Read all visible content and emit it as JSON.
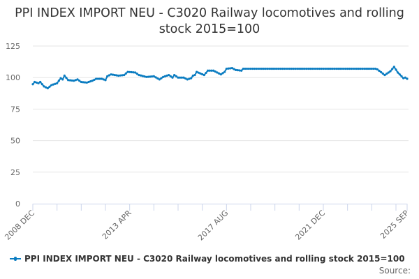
{
  "chart_data": {
    "type": "line",
    "title": "PPI INDEX IMPORT NEU - C3020 Railway locomotives and rolling stock 2015=100",
    "xlabel": "",
    "ylabel": "",
    "ylim": [
      0,
      125
    ],
    "yticks": [
      0,
      25,
      50,
      75,
      100,
      125
    ],
    "xtick_labels": [
      "2008 DEC",
      "2013 APR",
      "2017 AUG",
      "2021 DEC",
      "2025 SEP"
    ],
    "xlim": [
      "2008-12",
      "2025-09"
    ],
    "grid": "horizontal",
    "legend_placement": "bottom",
    "color": "#0a7cc1",
    "series": [
      {
        "name": "PPI INDEX IMPORT NEU - C3020 Railway locomotives and rolling stock 2015=100",
        "points": [
          [
            "2008-12",
            94.7
          ],
          [
            "2009-01",
            96.5
          ],
          [
            "2009-03",
            95.5
          ],
          [
            "2009-04",
            96.5
          ],
          [
            "2009-06",
            93
          ],
          [
            "2009-08",
            91.5
          ],
          [
            "2009-10",
            94
          ],
          [
            "2010-01",
            95.5
          ],
          [
            "2010-03",
            99.5
          ],
          [
            "2010-04",
            98.5
          ],
          [
            "2010-05",
            101.5
          ],
          [
            "2010-07",
            98
          ],
          [
            "2010-10",
            97.5
          ],
          [
            "2010-12",
            98.5
          ],
          [
            "2011-02",
            96.5
          ],
          [
            "2011-05",
            96
          ],
          [
            "2011-08",
            97.5
          ],
          [
            "2011-10",
            99
          ],
          [
            "2012-01",
            99
          ],
          [
            "2012-03",
            98
          ],
          [
            "2012-04",
            101
          ],
          [
            "2012-06",
            102.5
          ],
          [
            "2012-10",
            101.5
          ],
          [
            "2013-01",
            102
          ],
          [
            "2013-03",
            104.5
          ],
          [
            "2013-07",
            104
          ],
          [
            "2013-09",
            102
          ],
          [
            "2014-01",
            100.5
          ],
          [
            "2014-05",
            101
          ],
          [
            "2014-08",
            98.5
          ],
          [
            "2014-10",
            100.5
          ],
          [
            "2015-01",
            102
          ],
          [
            "2015-03",
            100
          ],
          [
            "2015-04",
            102
          ],
          [
            "2015-06",
            100
          ],
          [
            "2015-09",
            100
          ],
          [
            "2015-11",
            98.5
          ],
          [
            "2016-01",
            99.5
          ],
          [
            "2016-02",
            101.5
          ],
          [
            "2016-03",
            102
          ],
          [
            "2016-04",
            104.5
          ],
          [
            "2016-08",
            102
          ],
          [
            "2016-10",
            105.5
          ],
          [
            "2017-01",
            105.5
          ],
          [
            "2017-05",
            102.5
          ],
          [
            "2017-07",
            104.5
          ],
          [
            "2017-08",
            107
          ],
          [
            "2017-11",
            107.5
          ],
          [
            "2018-01",
            106
          ],
          [
            "2018-04",
            105.5
          ],
          [
            "2018-05",
            107
          ],
          [
            "2024-04",
            107
          ],
          [
            "2024-05",
            106.5
          ],
          [
            "2024-09",
            102
          ],
          [
            "2024-12",
            105
          ],
          [
            "2025-02",
            108.5
          ],
          [
            "2025-04",
            104
          ],
          [
            "2025-07",
            99.5
          ],
          [
            "2025-08",
            100
          ],
          [
            "2025-09",
            99
          ]
        ]
      }
    ]
  },
  "legend": {
    "label": "PPI INDEX IMPORT NEU - C3020 Railway locomotives and rolling stock 2015=100"
  },
  "source_label": "Source:"
}
